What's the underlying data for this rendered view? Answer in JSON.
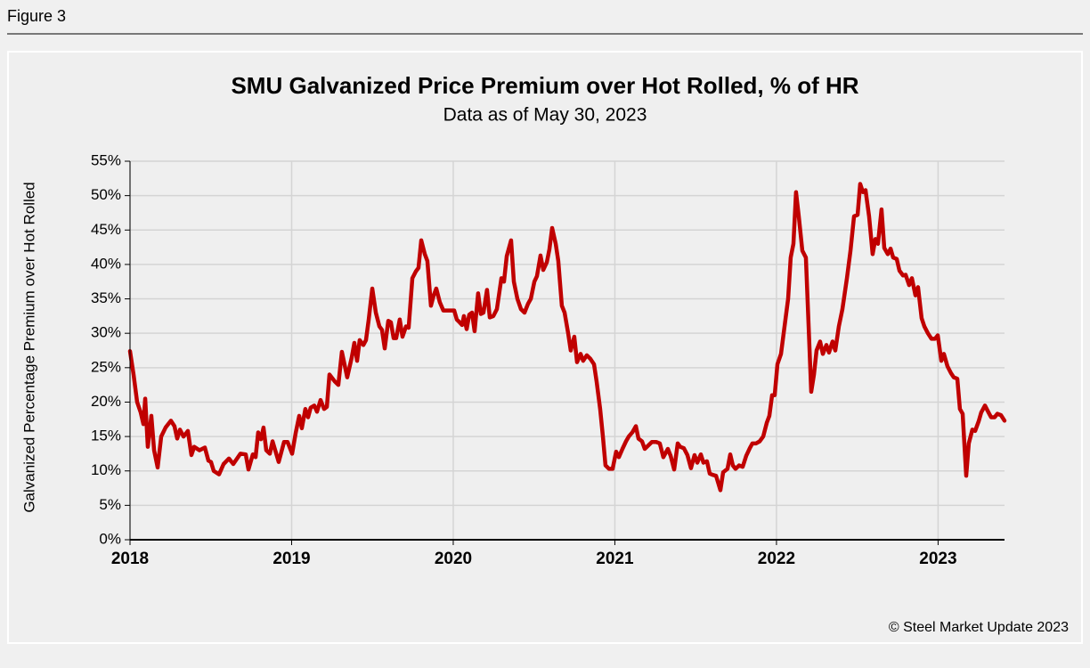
{
  "header": {
    "label": "Figure 3"
  },
  "chart_data": {
    "type": "line",
    "title": "SMU Galvanized Price Premium over Hot Rolled, % of HR",
    "subtitle": "Data as of May 30, 2023",
    "y_label": "Galvanized Percentage Premium over Hot Rolled",
    "source": "© Steel Market Update 2023",
    "grid": true,
    "xlim": [
      2018,
      2023.411
    ],
    "xticks": [
      2018,
      2019,
      2020,
      2021,
      2022,
      2023
    ],
    "ylim": [
      0,
      55
    ],
    "yticks": [
      {
        "value": 0,
        "label": "0%"
      },
      {
        "value": 5,
        "label": "5%"
      },
      {
        "value": 10,
        "label": "10%"
      },
      {
        "value": 15,
        "label": "15%"
      },
      {
        "value": 20,
        "label": "20%"
      },
      {
        "value": 25,
        "label": "25%"
      },
      {
        "value": 30,
        "label": "30%"
      },
      {
        "value": 35,
        "label": "35%"
      },
      {
        "value": 40,
        "label": "40%"
      },
      {
        "value": 45,
        "label": "45%"
      },
      {
        "value": 50,
        "label": "50%"
      },
      {
        "value": 55,
        "label": "55%"
      }
    ],
    "x": [
      2018.0,
      2018.022,
      2018.044,
      2018.066,
      2018.083,
      2018.094,
      2018.11,
      2018.132,
      2018.149,
      2018.171,
      2018.193,
      2018.22,
      2018.253,
      2018.275,
      2018.292,
      2018.309,
      2018.331,
      2018.358,
      2018.38,
      2018.397,
      2018.43,
      2018.463,
      2018.485,
      2018.501,
      2018.518,
      2018.551,
      2018.579,
      2018.612,
      2018.639,
      2018.683,
      2018.716,
      2018.733,
      2018.76,
      2018.777,
      2018.793,
      2018.81,
      2018.826,
      2018.843,
      2018.865,
      2018.882,
      2018.92,
      2018.953,
      2018.975,
      2019.003,
      2019.025,
      2019.047,
      2019.063,
      2019.085,
      2019.102,
      2019.118,
      2019.14,
      2019.157,
      2019.179,
      2019.201,
      2019.218,
      2019.234,
      2019.267,
      2019.289,
      2019.311,
      2019.344,
      2019.372,
      2019.388,
      2019.405,
      2019.421,
      2019.444,
      2019.46,
      2019.477,
      2019.499,
      2019.521,
      2019.543,
      2019.559,
      2019.576,
      2019.598,
      2019.614,
      2019.631,
      2019.647,
      2019.669,
      2019.686,
      2019.708,
      2019.724,
      2019.747,
      2019.769,
      2019.785,
      2019.802,
      2019.824,
      2019.84,
      2019.862,
      2019.879,
      2019.895,
      2019.917,
      2019.939,
      2019.978,
      2020.006,
      2020.022,
      2020.039,
      2020.055,
      2020.066,
      2020.083,
      2020.099,
      2020.116,
      2020.132,
      2020.154,
      2020.171,
      2020.187,
      2020.209,
      2020.226,
      2020.248,
      2020.27,
      2020.298,
      2020.314,
      2020.331,
      2020.358,
      2020.375,
      2020.397,
      2020.419,
      2020.441,
      2020.463,
      2020.48,
      2020.502,
      2020.518,
      2020.54,
      2020.557,
      2020.579,
      2020.595,
      2020.612,
      2020.634,
      2020.65,
      2020.672,
      2020.689,
      2020.711,
      2020.727,
      2020.749,
      2020.766,
      2020.788,
      2020.804,
      2020.826,
      2020.848,
      2020.871,
      2020.887,
      2020.909,
      2020.926,
      2020.942,
      2020.964,
      2020.986,
      2021.008,
      2021.025,
      2021.047,
      2021.069,
      2021.086,
      2021.108,
      2021.13,
      2021.146,
      2021.168,
      2021.185,
      2021.207,
      2021.229,
      2021.256,
      2021.278,
      2021.3,
      2021.328,
      2021.345,
      2021.367,
      2021.389,
      2021.405,
      2021.427,
      2021.449,
      2021.471,
      2021.493,
      2021.51,
      2021.532,
      2021.548,
      2021.57,
      2021.587,
      2021.609,
      2021.626,
      2021.653,
      2021.67,
      2021.697,
      2021.714,
      2021.73,
      2021.747,
      2021.769,
      2021.791,
      2021.813,
      2021.835,
      2021.851,
      2021.874,
      2021.896,
      2021.918,
      2021.94,
      2021.956,
      2021.973,
      2021.989,
      2022.006,
      2022.028,
      2022.05,
      2022.072,
      2022.088,
      2022.105,
      2022.121,
      2022.138,
      2022.16,
      2022.182,
      2022.199,
      2022.215,
      2022.232,
      2022.248,
      2022.27,
      2022.287,
      2022.309,
      2022.325,
      2022.347,
      2022.364,
      2022.386,
      2022.408,
      2022.436,
      2022.458,
      2022.48,
      2022.502,
      2022.518,
      2022.535,
      2022.551,
      2022.573,
      2022.595,
      2022.612,
      2022.628,
      2022.65,
      2022.667,
      2022.689,
      2022.706,
      2022.722,
      2022.744,
      2022.761,
      2022.783,
      2022.799,
      2022.821,
      2022.838,
      2022.86,
      2022.876,
      2022.898,
      2022.915,
      2022.937,
      2022.959,
      2022.981,
      2022.998,
      2023.02,
      2023.036,
      2023.058,
      2023.08,
      2023.097,
      2023.119,
      2023.135,
      2023.152,
      2023.174,
      2023.19,
      2023.212,
      2023.229,
      2023.251,
      2023.267,
      2023.29,
      2023.312,
      2023.328,
      2023.35,
      2023.367,
      2023.389,
      2023.411
    ],
    "series": [
      {
        "name": "Galvanized premium",
        "color": "#c00000",
        "values": [
          27.4,
          24,
          20,
          18.5,
          16.8,
          20.5,
          13.5,
          18,
          13,
          10.5,
          15,
          16.3,
          17.3,
          16.5,
          14.7,
          16,
          15,
          15.8,
          12.3,
          13.5,
          13,
          13.4,
          11.5,
          11.3,
          10,
          9.5,
          11,
          11.8,
          11,
          12.5,
          12.4,
          10.2,
          12.4,
          12,
          15.6,
          14.6,
          16.3,
          13,
          12.5,
          14.3,
          11.3,
          14.2,
          14.2,
          12.5,
          15.5,
          18,
          16.2,
          19,
          17.8,
          19.2,
          19.5,
          18.6,
          20.3,
          19,
          19.3,
          24,
          23,
          22.5,
          27.3,
          23.6,
          26.5,
          28.6,
          26,
          29,
          28.3,
          29,
          32,
          36.5,
          33,
          31,
          30.5,
          27.8,
          31.8,
          31.6,
          29.3,
          29.3,
          32,
          29.5,
          31,
          30.8,
          38,
          39,
          39.5,
          43.5,
          41.5,
          40.5,
          34,
          35.5,
          36.5,
          34.5,
          33.3,
          33.3,
          33.3,
          32,
          31.6,
          31.2,
          32.5,
          30.6,
          32.7,
          33,
          30.3,
          35.8,
          32.8,
          33,
          36.3,
          32.3,
          32.5,
          33.5,
          38,
          37.5,
          41.2,
          43.5,
          37.5,
          35,
          33.5,
          33,
          34.3,
          35,
          37.5,
          38.3,
          41.3,
          39.2,
          40.3,
          42.2,
          45.3,
          43,
          40.5,
          34,
          33,
          30,
          27.5,
          29.5,
          25.8,
          27,
          26,
          26.8,
          26.3,
          25.5,
          23,
          19,
          15,
          10.8,
          10.3,
          10.3,
          12.8,
          12,
          13.2,
          14.3,
          15,
          15.6,
          16.5,
          14.7,
          14.3,
          13.2,
          13.7,
          14.2,
          14.2,
          14,
          12,
          13.2,
          12.2,
          10.2,
          14,
          13.5,
          13.3,
          12.3,
          10.4,
          12.3,
          11.2,
          12.4,
          11.2,
          11.4,
          9.6,
          9.4,
          9.3,
          7.2,
          9.8,
          10.3,
          12.4,
          10.8,
          10.3,
          10.8,
          10.6,
          12.2,
          13.3,
          14,
          14,
          14.3,
          15,
          17,
          18,
          21,
          21,
          25.5,
          27,
          31,
          35,
          41,
          43,
          50.5,
          47,
          42,
          41,
          31,
          21.5,
          24,
          27.5,
          28.8,
          27,
          28.3,
          27.2,
          28.8,
          27.5,
          31,
          33.5,
          38,
          42,
          47,
          47.2,
          51.7,
          50.5,
          50.8,
          47,
          41.5,
          43.7,
          43,
          48,
          42.4,
          41.5,
          42.3,
          41,
          40.8,
          39.1,
          38.4,
          38.5,
          37,
          38,
          35.5,
          36.7,
          32.2,
          31,
          30,
          29.2,
          29.2,
          29.7,
          26,
          27,
          25.2,
          24.2,
          23.6,
          23.4,
          19,
          18.3,
          9.3,
          14,
          16,
          15.8,
          17.2,
          18.5,
          19.5,
          18.5,
          17.8,
          17.8,
          18.3,
          18.1,
          17.3
        ]
      }
    ]
  }
}
